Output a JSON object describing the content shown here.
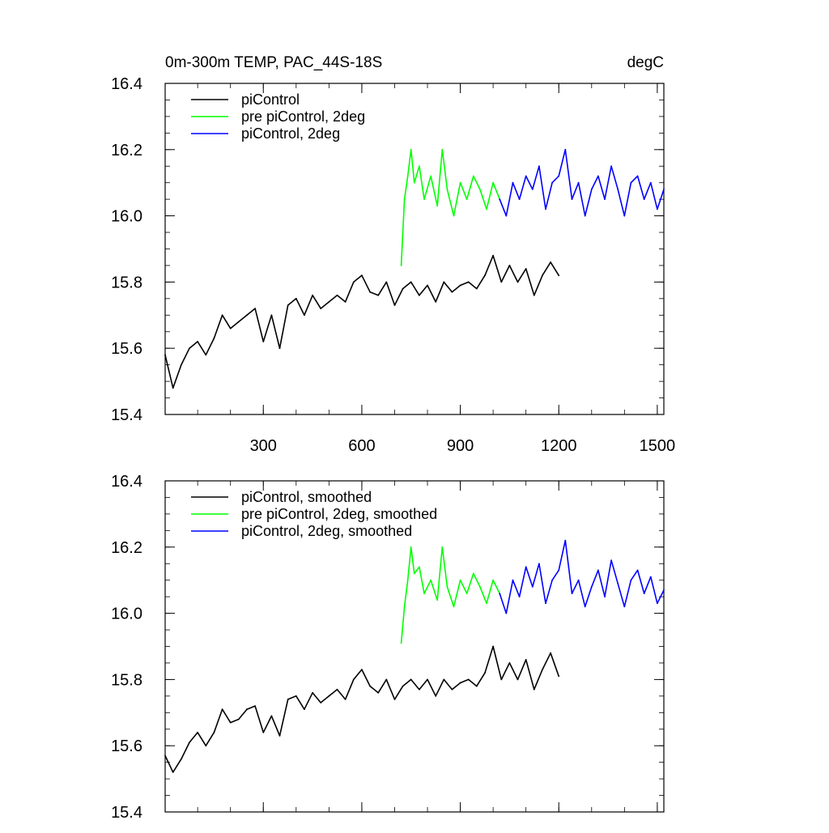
{
  "chart_data": [
    {
      "type": "line",
      "title": "0m-300m TEMP, PAC_44S-18S",
      "units": "degC",
      "xlabel": "",
      "ylabel": "",
      "xlim": [
        1,
        1520
      ],
      "ylim": [
        15.4,
        16.4
      ],
      "xticks": [
        300,
        600,
        900,
        1200,
        1500
      ],
      "xtick_labels": [
        "300",
        "600",
        "900",
        "1200",
        "1500"
      ],
      "yticks": [
        15.4,
        15.6,
        15.8,
        16.0,
        16.2,
        16.4
      ],
      "ytick_labels": [
        "15.4",
        "15.6",
        "15.8",
        "16.0",
        "16.2",
        "16.4"
      ],
      "grid": false,
      "legend_position": "top-left",
      "series": [
        {
          "name": "piControl",
          "color": "#000000",
          "x": [
            1,
            25,
            50,
            75,
            100,
            125,
            150,
            175,
            200,
            225,
            250,
            275,
            300,
            325,
            350,
            375,
            400,
            425,
            450,
            475,
            500,
            525,
            550,
            575,
            600,
            625,
            650,
            675,
            700,
            725,
            750,
            775,
            800,
            825,
            850,
            875,
            900,
            925,
            950,
            975,
            1000,
            1025,
            1050,
            1075,
            1100,
            1125,
            1150,
            1175,
            1200
          ],
          "values": [
            15.58,
            15.48,
            15.55,
            15.6,
            15.62,
            15.58,
            15.63,
            15.7,
            15.66,
            15.68,
            15.7,
            15.72,
            15.62,
            15.7,
            15.6,
            15.73,
            15.75,
            15.7,
            15.76,
            15.72,
            15.74,
            15.76,
            15.74,
            15.8,
            15.82,
            15.77,
            15.76,
            15.8,
            15.73,
            15.78,
            15.8,
            15.76,
            15.79,
            15.74,
            15.8,
            15.77,
            15.79,
            15.8,
            15.78,
            15.82,
            15.88,
            15.8,
            15.85,
            15.8,
            15.84,
            15.76,
            15.82,
            15.86,
            15.82
          ]
        },
        {
          "name": "pre piControl, 2deg",
          "color": "#00ff00",
          "x": [
            720,
            730,
            740,
            750,
            760,
            775,
            790,
            810,
            830,
            845,
            860,
            880,
            900,
            920,
            940,
            960,
            980,
            1000,
            1020
          ],
          "values": [
            15.85,
            16.05,
            16.12,
            16.2,
            16.1,
            16.15,
            16.05,
            16.12,
            16.03,
            16.2,
            16.08,
            16.0,
            16.1,
            16.05,
            16.12,
            16.08,
            16.02,
            16.1,
            16.05
          ]
        },
        {
          "name": "piControl, 2deg",
          "color": "#0000ff",
          "x": [
            1020,
            1040,
            1060,
            1080,
            1100,
            1120,
            1140,
            1160,
            1180,
            1200,
            1220,
            1240,
            1260,
            1280,
            1300,
            1320,
            1340,
            1360,
            1380,
            1400,
            1420,
            1440,
            1460,
            1480,
            1500,
            1520
          ],
          "values": [
            16.05,
            16.0,
            16.1,
            16.05,
            16.12,
            16.08,
            16.15,
            16.02,
            16.1,
            16.12,
            16.2,
            16.05,
            16.1,
            16.0,
            16.08,
            16.12,
            16.05,
            16.15,
            16.08,
            16.0,
            16.1,
            16.12,
            16.05,
            16.1,
            16.02,
            16.08
          ]
        }
      ]
    },
    {
      "type": "line",
      "title": "",
      "xlabel": "",
      "ylabel": "",
      "xlim": [
        1,
        1520
      ],
      "ylim": [
        15.4,
        16.4
      ],
      "xticks": [
        300,
        600,
        900,
        1200,
        1500
      ],
      "xtick_labels": [],
      "yticks": [
        15.4,
        15.6,
        15.8,
        16.0,
        16.2,
        16.4
      ],
      "ytick_labels": [
        "15.4",
        "15.6",
        "15.8",
        "16.0",
        "16.2",
        "16.4"
      ],
      "grid": false,
      "legend_position": "top-left",
      "series": [
        {
          "name": "piControl, smoothed",
          "color": "#000000",
          "x": [
            1,
            25,
            50,
            75,
            100,
            125,
            150,
            175,
            200,
            225,
            250,
            275,
            300,
            325,
            350,
            375,
            400,
            425,
            450,
            475,
            500,
            525,
            550,
            575,
            600,
            625,
            650,
            675,
            700,
            725,
            750,
            775,
            800,
            825,
            850,
            875,
            900,
            925,
            950,
            975,
            1000,
            1025,
            1050,
            1075,
            1100,
            1125,
            1150,
            1175,
            1200
          ],
          "values": [
            15.57,
            15.52,
            15.56,
            15.61,
            15.64,
            15.6,
            15.64,
            15.71,
            15.67,
            15.68,
            15.71,
            15.72,
            15.64,
            15.69,
            15.63,
            15.74,
            15.75,
            15.71,
            15.76,
            15.73,
            15.75,
            15.77,
            15.74,
            15.8,
            15.83,
            15.78,
            15.76,
            15.8,
            15.74,
            15.78,
            15.8,
            15.77,
            15.8,
            15.75,
            15.8,
            15.77,
            15.79,
            15.8,
            15.78,
            15.82,
            15.9,
            15.8,
            15.85,
            15.8,
            15.86,
            15.77,
            15.83,
            15.88,
            15.81
          ]
        },
        {
          "name": "pre piControl, 2deg, smoothed",
          "color": "#00ff00",
          "x": [
            720,
            730,
            740,
            750,
            760,
            775,
            790,
            810,
            830,
            845,
            860,
            880,
            900,
            920,
            940,
            960,
            980,
            1000,
            1020
          ],
          "values": [
            15.91,
            16.02,
            16.1,
            16.2,
            16.12,
            16.14,
            16.06,
            16.1,
            16.04,
            16.2,
            16.08,
            16.02,
            16.1,
            16.06,
            16.12,
            16.08,
            16.03,
            16.1,
            16.06
          ]
        },
        {
          "name": "piControl, 2deg, smoothed",
          "color": "#0000ff",
          "x": [
            1020,
            1040,
            1060,
            1080,
            1100,
            1120,
            1140,
            1160,
            1180,
            1200,
            1220,
            1240,
            1260,
            1280,
            1300,
            1320,
            1340,
            1360,
            1380,
            1400,
            1420,
            1440,
            1460,
            1480,
            1500,
            1520
          ],
          "values": [
            16.06,
            16.0,
            16.1,
            16.05,
            16.14,
            16.08,
            16.15,
            16.03,
            16.1,
            16.13,
            16.22,
            16.06,
            16.1,
            16.02,
            16.08,
            16.13,
            16.05,
            16.16,
            16.09,
            16.02,
            16.1,
            16.13,
            16.06,
            16.11,
            16.03,
            16.07
          ]
        }
      ]
    }
  ]
}
